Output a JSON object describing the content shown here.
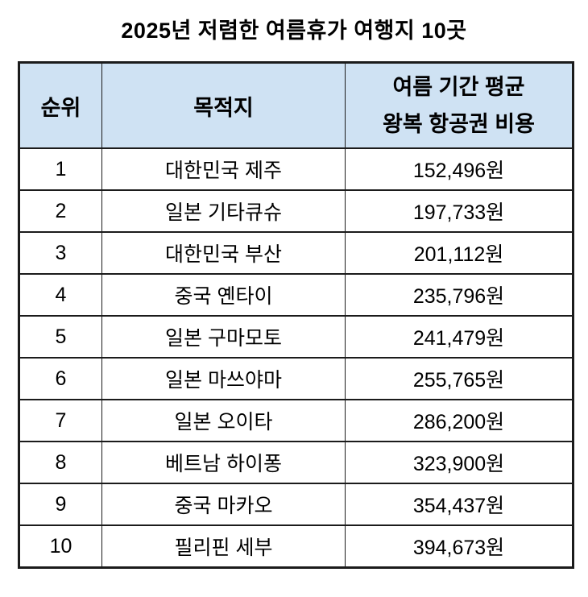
{
  "title": "2025년 저렴한 여름휴가 여행지 10곳",
  "colors": {
    "header_bg": "#cfe2f3",
    "border": "#1b1b1b",
    "text": "#000000",
    "page_bg": "#ffffff"
  },
  "table": {
    "headers": {
      "rank": "순위",
      "destination": "목적지",
      "cost_line1": "여름 기간 평균",
      "cost_line2": "왕복 항공권 비용"
    },
    "rows": [
      {
        "rank": "1",
        "destination": "대한민국 제주",
        "cost": "152,496원"
      },
      {
        "rank": "2",
        "destination": "일본 기타큐슈",
        "cost": "197,733원"
      },
      {
        "rank": "3",
        "destination": "대한민국 부산",
        "cost": "201,112원"
      },
      {
        "rank": "4",
        "destination": "중국 옌타이",
        "cost": "235,796원"
      },
      {
        "rank": "5",
        "destination": "일본 구마모토",
        "cost": "241,479원"
      },
      {
        "rank": "6",
        "destination": "일본 마쓰야마",
        "cost": "255,765원"
      },
      {
        "rank": "7",
        "destination": "일본 오이타",
        "cost": "286,200원"
      },
      {
        "rank": "8",
        "destination": "베트남 하이퐁",
        "cost": "323,900원"
      },
      {
        "rank": "9",
        "destination": "중국 마카오",
        "cost": "354,437원"
      },
      {
        "rank": "10",
        "destination": "필리핀 세부",
        "cost": "394,673원"
      }
    ]
  },
  "chart_data": {
    "type": "table",
    "title": "2025년 저렴한 여름휴가 여행지 10곳",
    "columns": [
      "순위",
      "목적지",
      "여름 기간 평균 왕복 항공권 비용"
    ],
    "rows": [
      [
        1,
        "대한민국 제주",
        "152,496원"
      ],
      [
        2,
        "일본 기타큐슈",
        "197,733원"
      ],
      [
        3,
        "대한민국 부산",
        "201,112원"
      ],
      [
        4,
        "중국 옌타이",
        "235,796원"
      ],
      [
        5,
        "일본 구마모토",
        "241,479원"
      ],
      [
        6,
        "일본 마쓰야마",
        "255,765원"
      ],
      [
        7,
        "일본 오이타",
        "286,200원"
      ],
      [
        8,
        "베트남 하이퐁",
        "323,900원"
      ],
      [
        9,
        "중국 마카오",
        "354,437원"
      ],
      [
        10,
        "필리핀 세부",
        "394,673원"
      ]
    ],
    "costs_krw": [
      152496,
      197733,
      201112,
      235796,
      241479,
      255765,
      286200,
      323900,
      354437,
      394673
    ],
    "layout": {
      "header_background": "#cfe2f3",
      "grid": true,
      "text_align": "center"
    }
  }
}
